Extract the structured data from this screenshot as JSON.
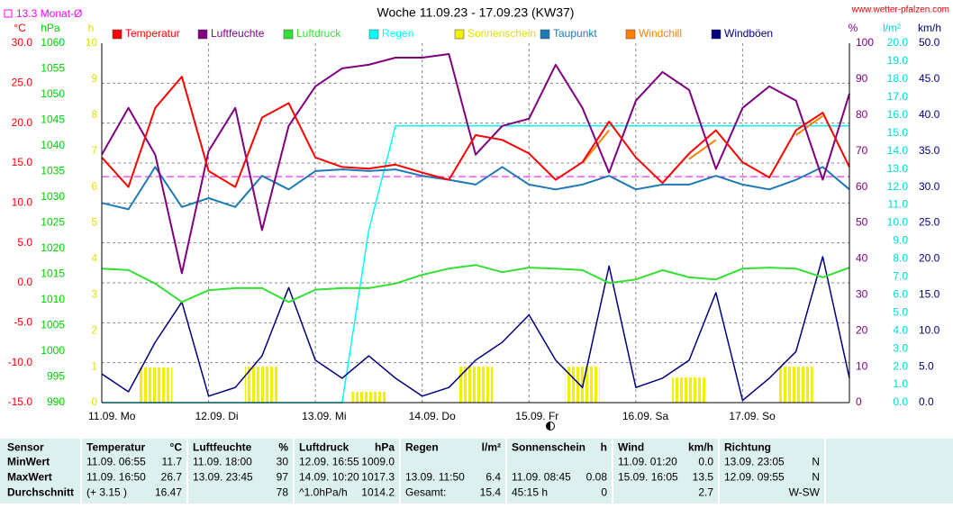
{
  "chart_data": {
    "type": "line",
    "title": "Woche 11.09.23 - 17.09.23 (KW37)",
    "source": "www.wetter-pfalzen.com",
    "grid": true,
    "categories": [
      "11.09. Mo",
      null,
      null,
      null,
      "12.09. Di",
      null,
      null,
      null,
      "13.09. Mi",
      null,
      null,
      null,
      "14.09. Do",
      null,
      null,
      null,
      "15.09. Fr",
      null,
      null,
      null,
      "16.09. Sa",
      null,
      null,
      null,
      "17.09. So",
      null,
      null,
      null,
      null
    ],
    "axes": [
      {
        "label": "°C",
        "color": "#ff0000",
        "lim": [
          -15,
          30
        ],
        "ticks": [
          {
            "value": -15,
            "label": "-15.0"
          },
          {
            "value": -10,
            "label": "-10.0"
          },
          {
            "value": -5,
            "label": "-5.0"
          },
          {
            "value": 0,
            "label": "0.0"
          },
          {
            "value": 5,
            "label": "5.0"
          },
          {
            "value": 10,
            "label": "10.0"
          },
          {
            "value": 15,
            "label": "15.0"
          },
          {
            "value": 20,
            "label": "20.0"
          },
          {
            "value": 25,
            "label": "25.0"
          },
          {
            "value": 30,
            "label": "30.0"
          }
        ]
      },
      {
        "label": "hPa",
        "color": "#00d000",
        "lim": [
          990,
          1060
        ],
        "ticks": [
          990,
          995,
          1000,
          1005,
          1010,
          1015,
          1020,
          1025,
          1030,
          1035,
          1040,
          1045,
          1050,
          1055,
          1060
        ]
      },
      {
        "label": "h",
        "color": "#e0e000",
        "lim": [
          0,
          10
        ],
        "ticks": [
          0,
          1,
          2,
          3,
          4,
          5,
          6,
          7,
          8,
          9,
          10
        ]
      },
      {
        "label": "%",
        "color": "#800080",
        "lim": [
          0,
          100
        ],
        "ticks": [
          0,
          10,
          20,
          30,
          40,
          50,
          60,
          70,
          80,
          90,
          100
        ]
      },
      {
        "label": "l/m²",
        "color": "#00d8d8",
        "lim": [
          0,
          20
        ],
        "ticks": [
          {
            "value": 0,
            "label": "0.0"
          },
          {
            "value": 1,
            "label": "1.0"
          },
          {
            "value": 2,
            "label": "2.0"
          },
          {
            "value": 3,
            "label": "3.0"
          },
          {
            "value": 4,
            "label": "4.0"
          },
          {
            "value": 5,
            "label": "5.0"
          },
          {
            "value": 6,
            "label": "6.0"
          },
          {
            "value": 7,
            "label": "7.0"
          },
          {
            "value": 8,
            "label": "8.0"
          },
          {
            "value": 9,
            "label": "9.0"
          },
          {
            "value": 10,
            "label": "10.0"
          },
          {
            "value": 11,
            "label": "11.0"
          },
          {
            "value": 12,
            "label": "12.0"
          },
          {
            "value": 13,
            "label": "13.0"
          },
          {
            "value": 14,
            "label": "14.0"
          },
          {
            "value": 15,
            "label": "15.0"
          },
          {
            "value": 16,
            "label": "16.0"
          },
          {
            "value": 17,
            "label": "17.0"
          },
          {
            "value": 18,
            "label": "18.0"
          },
          {
            "value": 19,
            "label": "19.0"
          },
          {
            "value": 20,
            "label": "20.0"
          }
        ]
      },
      {
        "label": "km/h",
        "color": "#000080",
        "lim": [
          0,
          50
        ],
        "ticks": [
          {
            "value": 0,
            "label": "0.0"
          },
          {
            "value": 5,
            "label": "5.0"
          },
          {
            "value": 10,
            "label": "10.0"
          },
          {
            "value": 15,
            "label": "15.0"
          },
          {
            "value": 20,
            "label": "20.0"
          },
          {
            "value": 25,
            "label": "25.0"
          },
          {
            "value": 30,
            "label": "30.0"
          },
          {
            "value": 35,
            "label": "35.0"
          },
          {
            "value": 40,
            "label": "40.0"
          },
          {
            "value": 45,
            "label": "45.0"
          },
          {
            "value": 50,
            "label": "50.0"
          }
        ]
      }
    ],
    "reference": {
      "label": "13.3 Monat-Ø",
      "value": 13.3,
      "color": "#ff00ff",
      "axis": 0
    },
    "series": [
      {
        "name": "Temperatur",
        "color": "#ff0000",
        "axis": 0,
        "values": [
          15.7,
          12.0,
          21.9,
          25.8,
          14.0,
          12.0,
          20.7,
          22.5,
          15.7,
          14.5,
          14.3,
          14.8,
          13.8,
          12.9,
          18.5,
          17.9,
          16.2,
          12.9,
          15.1,
          20.2,
          15.7,
          12.5,
          16.2,
          19.1,
          15.1,
          13.2,
          19.1,
          21.3,
          14.5
        ]
      },
      {
        "name": "Luftfeuchte",
        "color": "#800080",
        "axis": 3,
        "values": [
          69,
          82,
          69,
          36,
          70,
          82,
          48,
          77,
          88,
          93,
          94,
          96,
          96,
          97,
          69,
          77,
          79,
          94,
          82,
          64,
          84,
          92,
          87,
          65,
          82,
          88,
          84,
          62,
          86
        ]
      },
      {
        "name": "Luftdruck",
        "color": "#33e033",
        "axis": 1,
        "values": [
          1016.1,
          1015.8,
          1013.2,
          1009.6,
          1011.9,
          1012.3,
          1012.3,
          1009.6,
          1012.0,
          1012.3,
          1012.3,
          1013.2,
          1014.9,
          1016.1,
          1016.8,
          1015.4,
          1016.3,
          1016.1,
          1015.8,
          1013.3,
          1014.0,
          1015.8,
          1014.4,
          1014.0,
          1016.1,
          1016.3,
          1016.1,
          1014.4,
          1016.3
        ]
      },
      {
        "name": "Regen",
        "color": "#00ffff",
        "axis": 4,
        "values": [
          0,
          0,
          0,
          0,
          0,
          0,
          0,
          0,
          0,
          0,
          9.6,
          15.4,
          15.4,
          15.4,
          15.4,
          15.4,
          15.4,
          15.4,
          15.4,
          15.4,
          15.4,
          15.4,
          15.4,
          15.4,
          15.4,
          15.4,
          15.4,
          15.4,
          15.4
        ]
      },
      {
        "name": "Sonnenschein",
        "color": "#f0f000",
        "axis": 2,
        "type": "bar",
        "values": [
          0,
          0,
          0.98,
          0,
          0,
          0,
          1.0,
          0,
          0,
          0,
          0.3,
          0,
          0,
          0,
          1.0,
          0,
          0,
          0,
          1.0,
          0,
          0,
          0,
          0.7,
          0,
          0,
          0,
          1.0,
          0,
          0
        ]
      },
      {
        "name": "Taupunkt",
        "color": "#1e7ab4",
        "axis": 0,
        "values": [
          10.0,
          9.2,
          14.5,
          9.5,
          10.6,
          9.5,
          13.4,
          11.7,
          14.0,
          14.2,
          14.0,
          14.2,
          13.4,
          12.9,
          12.3,
          14.5,
          12.3,
          11.7,
          12.3,
          13.4,
          11.7,
          12.3,
          12.3,
          13.4,
          12.3,
          11.7,
          12.9,
          14.5,
          11.7
        ]
      },
      {
        "name": "Windchill",
        "color": "#ff8000",
        "axis": 0,
        "values": [
          null,
          null,
          null,
          null,
          null,
          null,
          null,
          null,
          null,
          null,
          null,
          null,
          null,
          null,
          null,
          null,
          null,
          null,
          15.0,
          19.1,
          null,
          null,
          15.5,
          17.9,
          null,
          null,
          18.5,
          20.9,
          null
        ]
      },
      {
        "name": "Windböen",
        "color": "#000080",
        "axis": 5,
        "values": [
          4.0,
          1.5,
          8.4,
          14.0,
          0.9,
          2.1,
          6.5,
          16.0,
          5.9,
          3.4,
          6.5,
          3.4,
          0.9,
          2.1,
          5.9,
          8.4,
          12.2,
          5.9,
          2.1,
          19.0,
          2.1,
          3.4,
          5.9,
          15.3,
          0.3,
          3.4,
          7.1,
          20.3,
          3.4
        ]
      }
    ]
  },
  "table": {
    "columns": [
      {
        "name": "Sensor"
      },
      {
        "name": "Temperatur",
        "unit": "°C"
      },
      {
        "name": "Luftfeuchte",
        "unit": "%"
      },
      {
        "name": "Luftdruck",
        "unit": "hPa"
      },
      {
        "name": "Regen",
        "unit": "l/m²"
      },
      {
        "name": "Sonnenschein",
        "unit": "h"
      },
      {
        "name": "Wind",
        "unit": "km/h"
      },
      {
        "name": "Richtung"
      }
    ],
    "rows": [
      {
        "label": "MinWert",
        "cells": [
          {
            "left": "11.09. 06:55",
            "right": "11.7"
          },
          {
            "left": "11.09. 18:00",
            "right": "30"
          },
          {
            "left": "12.09. 16:55",
            "right": "1009.0"
          },
          null,
          null,
          {
            "left": "11.09. 01:20",
            "right": "0.0"
          },
          {
            "left": "13.09. 23:05",
            "right": "N"
          }
        ]
      },
      {
        "label": "MaxWert",
        "cells": [
          {
            "left": "11.09. 16:50",
            "right": "26.7"
          },
          {
            "left": "13.09. 23:45",
            "right": "97"
          },
          {
            "left": "14.09. 10:20",
            "right": "1017.3"
          },
          {
            "left": "13.09. 11:50",
            "right": "6.4"
          },
          {
            "left": "11.09. 08:45",
            "right": "0.08"
          },
          {
            "left": "15.09. 16:05",
            "right": "13.5"
          },
          {
            "left": "12.09. 09:55",
            "right": "N"
          }
        ]
      },
      {
        "label": "Durchschnitt",
        "cells": [
          {
            "left": "(+ 3.15 )",
            "right": "16.47"
          },
          {
            "right": "78"
          },
          {
            "left": "^1.0hPa/h",
            "right": "1014.2"
          },
          {
            "left": "Gesamt:",
            "right": "15.4"
          },
          {
            "left": "45:15 h",
            "right": "0"
          },
          {
            "right": "2.7"
          },
          {
            "right": "W-SW"
          }
        ]
      }
    ]
  }
}
